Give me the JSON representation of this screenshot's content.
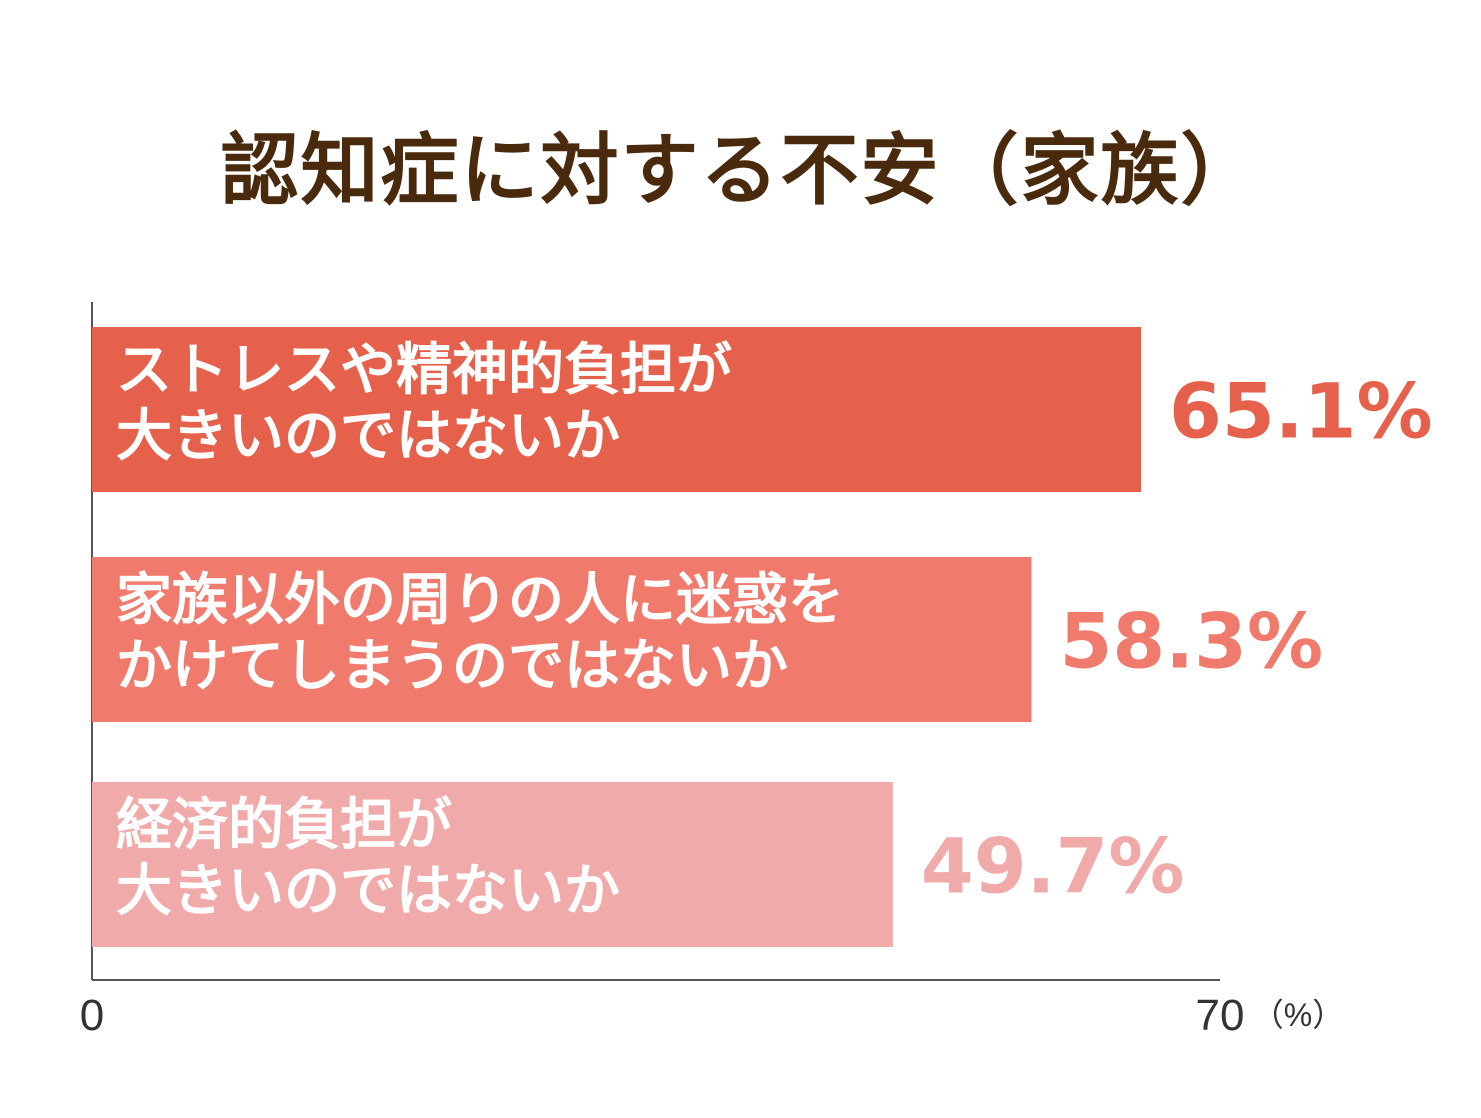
{
  "chart_data": {
    "type": "bar",
    "orientation": "horizontal",
    "title": "認知症に対する不安（家族）",
    "categories": [
      [
        "ストレスや精神的負担が",
        "大きいのではないか"
      ],
      [
        "家族以外の周りの人に迷惑を",
        "かけてしまうのではないか"
      ],
      [
        "経済的負担が",
        "大きいのではないか"
      ]
    ],
    "values": [
      65.1,
      58.3,
      49.7
    ],
    "value_labels": [
      "65.1%",
      "58.3%",
      "49.7%"
    ],
    "colors": [
      "#e5614c",
      "#f07a6c",
      "#f0aaaa"
    ],
    "xlim": [
      0,
      70
    ],
    "x_ticks": [
      "0",
      "70"
    ],
    "unit": "（%）",
    "grid": false,
    "legend": "none"
  }
}
